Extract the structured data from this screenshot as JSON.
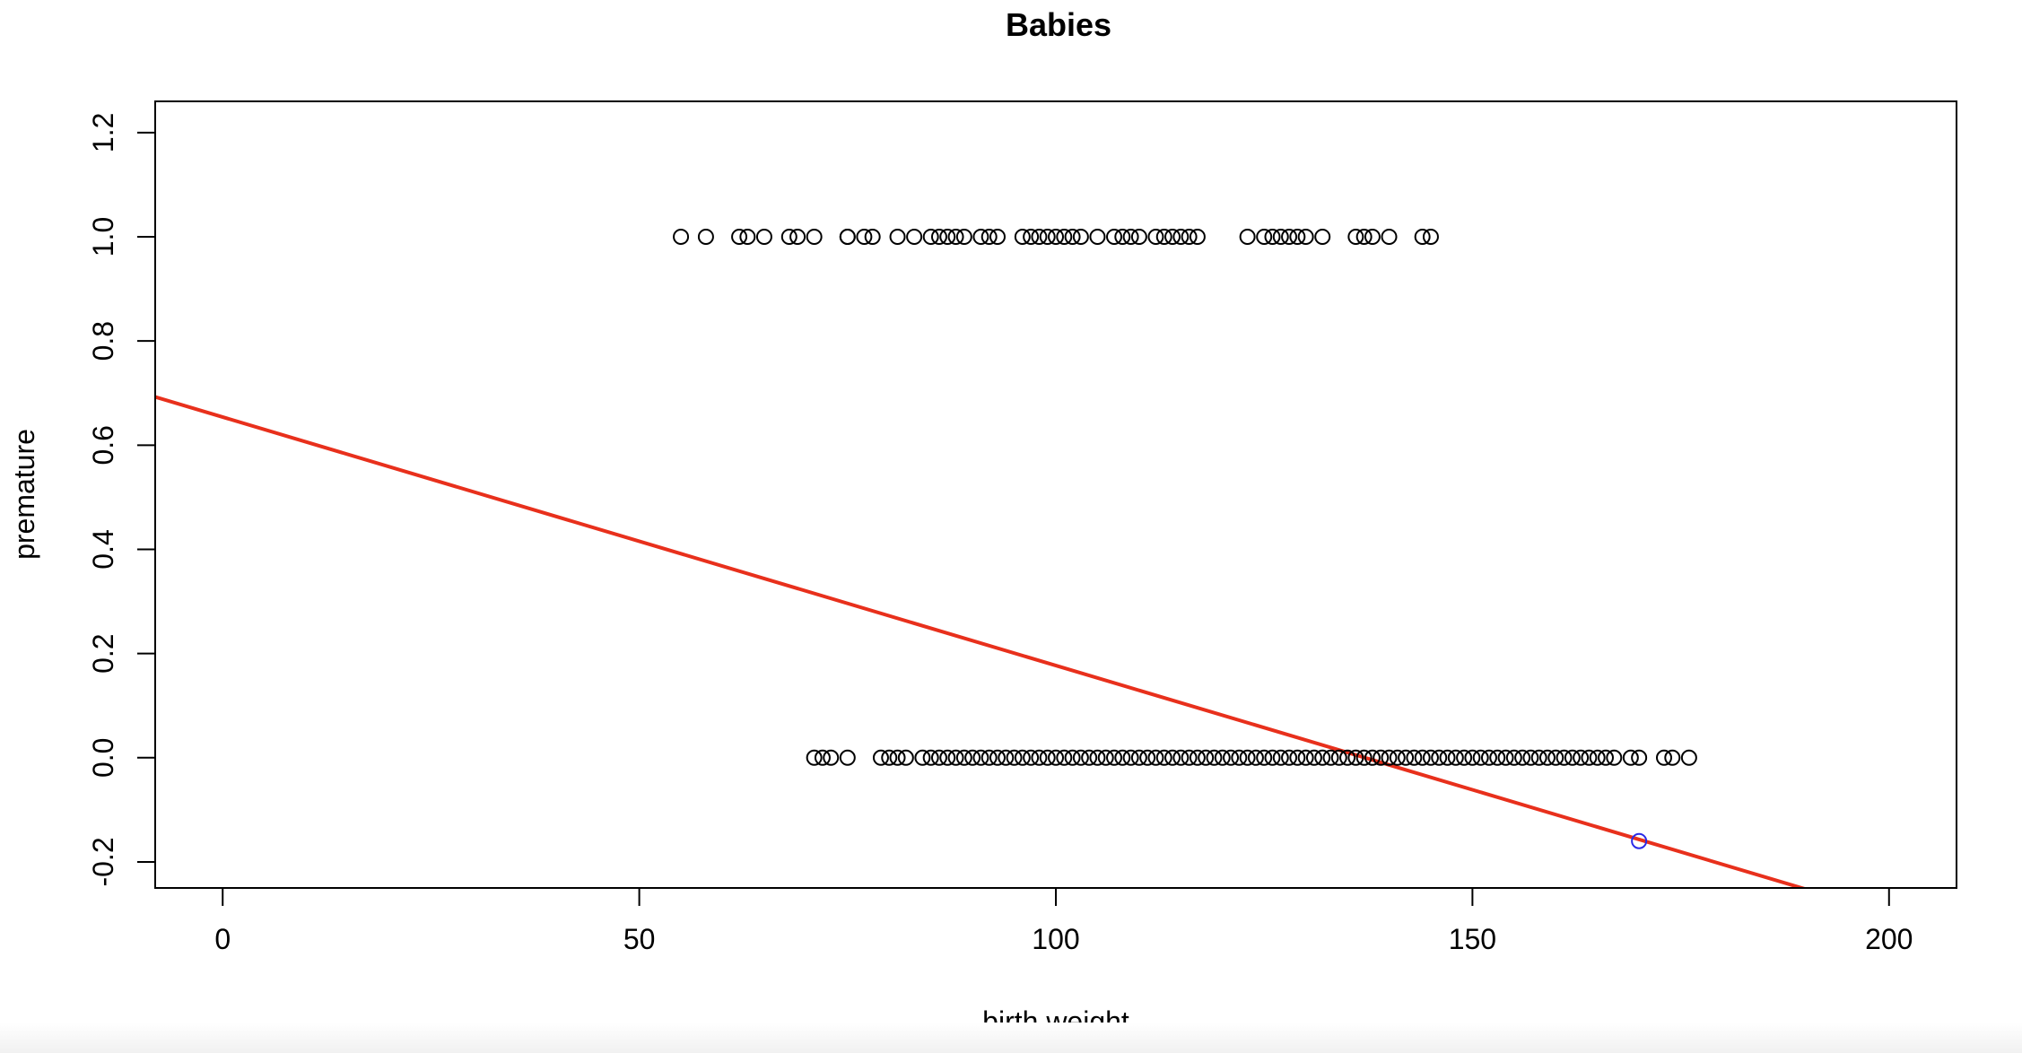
{
  "chart_data": {
    "type": "scatter",
    "title": "Babies",
    "xlabel": "birth weight",
    "ylabel": "premature",
    "xlim": [
      -8.1,
      208.1
    ],
    "ylim": [
      -0.25,
      1.26
    ],
    "xticks": [
      0,
      50,
      100,
      150,
      200
    ],
    "yticks": [
      -0.2,
      0.0,
      0.2,
      0.4,
      0.6,
      0.8,
      1.0,
      1.2
    ],
    "grid": false,
    "legend": "none",
    "series": [
      {
        "y": 1,
        "color": "#000000",
        "x": [
          55,
          58,
          62,
          63,
          65,
          68,
          69,
          71,
          75,
          75,
          77,
          78,
          81,
          83,
          85,
          86,
          87,
          88,
          89,
          91,
          92,
          93,
          96,
          97,
          98,
          99,
          100,
          101,
          102,
          103,
          105,
          107,
          108,
          109,
          110,
          112,
          113,
          114,
          115,
          116,
          117,
          123,
          125,
          126,
          127,
          128,
          129,
          130,
          132,
          136,
          137,
          138,
          140,
          144,
          145
        ]
      },
      {
        "y": 0,
        "color": "#000000",
        "x": [
          71,
          72,
          73,
          75,
          79,
          80,
          81,
          82,
          84,
          85,
          86,
          87,
          88,
          89,
          90,
          91,
          92,
          93,
          94,
          95,
          96,
          97,
          98,
          99,
          100,
          101,
          102,
          103,
          104,
          105,
          106,
          107,
          108,
          109,
          110,
          111,
          112,
          113,
          114,
          115,
          116,
          117,
          118,
          119,
          120,
          121,
          122,
          123,
          124,
          125,
          126,
          127,
          128,
          129,
          130,
          131,
          132,
          133,
          134,
          135,
          136,
          137,
          138,
          139,
          140,
          141,
          142,
          143,
          144,
          145,
          146,
          147,
          148,
          149,
          150,
          151,
          152,
          153,
          154,
          155,
          156,
          157,
          158,
          159,
          160,
          161,
          162,
          163,
          164,
          165,
          166,
          167,
          169,
          170,
          173,
          174,
          176
        ]
      }
    ],
    "highlight_point": {
      "x": 170,
      "y": -0.16,
      "color": "#2a2ae8"
    },
    "regression_line": {
      "intercept": 0.654,
      "slope": -0.00477,
      "color": "#e8301c"
    }
  }
}
